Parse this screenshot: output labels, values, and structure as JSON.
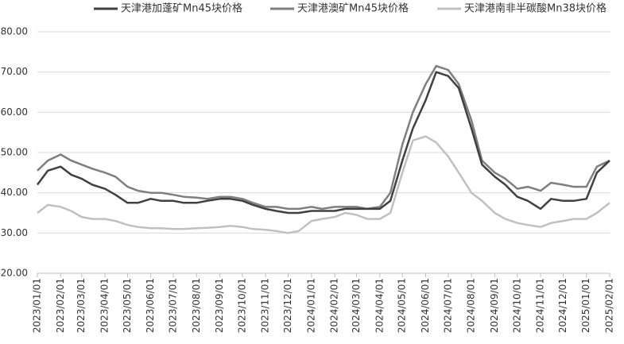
{
  "chart_data": {
    "type": "line",
    "x": [
      "2023/01/01",
      "2023/01/15",
      "2023/02/01",
      "2023/02/15",
      "2023/03/01",
      "2023/03/15",
      "2023/04/01",
      "2023/04/15",
      "2023/05/01",
      "2023/05/15",
      "2023/06/01",
      "2023/06/15",
      "2023/07/01",
      "2023/07/15",
      "2023/08/01",
      "2023/08/15",
      "2023/09/01",
      "2023/09/15",
      "2023/10/01",
      "2023/10/15",
      "2023/11/01",
      "2023/11/15",
      "2023/12/01",
      "2023/12/15",
      "2024/01/01",
      "2024/01/15",
      "2024/02/01",
      "2024/02/15",
      "2024/03/01",
      "2024/03/15",
      "2024/04/01",
      "2024/04/15",
      "2024/05/01",
      "2024/05/15",
      "2024/06/01",
      "2024/06/15",
      "2024/07/01",
      "2024/07/15",
      "2024/08/01",
      "2024/08/15",
      "2024/09/01",
      "2024/09/15",
      "2024/10/01",
      "2024/10/15",
      "2024/11/01",
      "2024/11/15",
      "2024/12/01",
      "2024/12/15",
      "2025/01/01",
      "2025/01/15",
      "2025/02/01"
    ],
    "series": [
      {
        "name": "天津港加蓬矿Mn45块价格",
        "color": "#404040",
        "values": [
          42,
          45.5,
          46.5,
          44.5,
          43.5,
          42,
          41,
          39.5,
          37.5,
          37.5,
          38.5,
          38,
          38,
          37.5,
          37.5,
          38,
          38.5,
          38.5,
          38,
          37,
          36,
          35.5,
          35,
          35,
          35.5,
          35.5,
          35.5,
          36,
          36,
          36,
          36,
          38,
          48,
          56,
          63,
          70,
          69,
          66,
          56,
          47,
          44,
          42,
          39,
          38,
          36,
          38.5,
          38,
          38,
          38.5,
          45,
          48
        ]
      },
      {
        "name": "天津港澳矿Mn45块价格",
        "color": "#7f7f7f",
        "values": [
          45.5,
          48,
          49.5,
          48,
          47,
          46,
          45,
          44,
          41.5,
          40.5,
          40,
          40,
          39.5,
          39,
          38.8,
          38.5,
          39,
          39,
          38.5,
          37.5,
          36.5,
          36.5,
          36,
          36,
          36.5,
          36,
          36.5,
          36.5,
          36.5,
          36,
          36.5,
          40,
          52,
          60,
          67,
          71.5,
          70.5,
          67,
          58,
          48,
          45,
          43.5,
          41,
          41.5,
          40.5,
          42.5,
          42,
          41.5,
          41.5,
          46.5,
          48
        ]
      },
      {
        "name": "天津港南非半碳酸Mn38块价格",
        "color": "#c0c0c0",
        "values": [
          35,
          37,
          36.5,
          35.5,
          34,
          33.5,
          33.5,
          33,
          32,
          31.5,
          31.2,
          31.2,
          31,
          31,
          31.2,
          31.3,
          31.5,
          31.8,
          31.5,
          31,
          30.8,
          30.5,
          30,
          30.5,
          33,
          33.5,
          34,
          35,
          34.5,
          33.5,
          33.5,
          35,
          45,
          53,
          54,
          52.5,
          49,
          45,
          40,
          38,
          35,
          33.5,
          32.5,
          32,
          31.5,
          32.5,
          33,
          33.5,
          33.5,
          35,
          37.5
        ]
      }
    ],
    "xlim": [
      "2023/01/01",
      "2025/02/01"
    ],
    "xticks": [
      "2023/01/01",
      "2023/02/01",
      "2023/03/01",
      "2023/04/01",
      "2023/05/01",
      "2023/06/01",
      "2023/07/01",
      "2023/08/01",
      "2023/09/01",
      "2023/10/01",
      "2023/11/01",
      "2023/12/01",
      "2024/01/01",
      "2024/02/01",
      "2024/03/01",
      "2024/04/01",
      "2024/05/01",
      "2024/06/01",
      "2024/07/01",
      "2024/08/01",
      "2024/09/01",
      "2024/10/01",
      "2024/11/01",
      "2024/12/01",
      "2025/01/01",
      "2025/02/01"
    ],
    "ylim": [
      20,
      80
    ],
    "yticks": [
      {
        "value": 20,
        "label": "20.00"
      },
      {
        "value": 30,
        "label": "30.00"
      },
      {
        "value": 40,
        "label": "40.00"
      },
      {
        "value": 50,
        "label": "50.00"
      },
      {
        "value": 60,
        "label": "60.00"
      },
      {
        "value": 70,
        "label": "70.00"
      },
      {
        "value": 80,
        "label": "80.00"
      }
    ],
    "grid": true,
    "legend": "top"
  }
}
